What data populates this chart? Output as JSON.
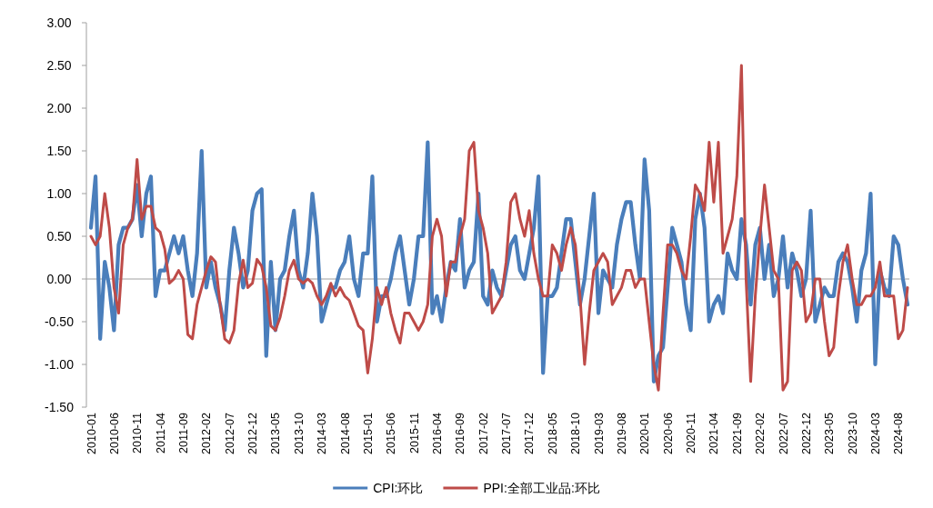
{
  "chart_data": {
    "type": "line",
    "categories": [
      "2010-01",
      null,
      null,
      null,
      null,
      "2010-06",
      null,
      null,
      null,
      null,
      "2010-11",
      null,
      null,
      null,
      null,
      "2011-04",
      null,
      null,
      null,
      null,
      "2011-09",
      null,
      null,
      null,
      null,
      "2012-02",
      null,
      null,
      null,
      null,
      "2012-07",
      null,
      null,
      null,
      null,
      "2012-12",
      null,
      null,
      null,
      null,
      "2013-05",
      null,
      null,
      null,
      null,
      "2013-10",
      null,
      null,
      null,
      null,
      "2014-03",
      null,
      null,
      null,
      null,
      "2014-08",
      null,
      null,
      null,
      null,
      "2015-01",
      null,
      null,
      null,
      null,
      "2015-06",
      null,
      null,
      null,
      null,
      "2015-11",
      null,
      null,
      null,
      null,
      "2016-04",
      null,
      null,
      null,
      null,
      "2016-09",
      null,
      null,
      null,
      null,
      "2017-02",
      null,
      null,
      null,
      null,
      "2017-07",
      null,
      null,
      null,
      null,
      "2017-12",
      null,
      null,
      null,
      null,
      "2018-05",
      null,
      null,
      null,
      null,
      "2018-10",
      null,
      null,
      null,
      null,
      "2019-03",
      null,
      null,
      null,
      null,
      "2019-08",
      null,
      null,
      null,
      null,
      "2020-01",
      null,
      null,
      null,
      null,
      "2020-06",
      null,
      null,
      null,
      null,
      "2020-11",
      null,
      null,
      null,
      null,
      "2021-04",
      null,
      null,
      null,
      null,
      "2021-09",
      null,
      null,
      null,
      null,
      "2022-02",
      null,
      null,
      null,
      null,
      "2022-07",
      null,
      null,
      null,
      null,
      "2022-12",
      null,
      null,
      null,
      null,
      "2023-05",
      null,
      null,
      null,
      null,
      "2023-10",
      null,
      null,
      null,
      null,
      "2024-03",
      null,
      null,
      null,
      null,
      "2024-08",
      null,
      null
    ],
    "series": [
      {
        "name": "CPI:环比",
        "color": "#4a7ebb",
        "values": [
          0.6,
          1.2,
          -0.7,
          0.2,
          -0.1,
          -0.6,
          0.4,
          0.6,
          0.6,
          0.7,
          1.1,
          0.5,
          1.0,
          1.2,
          -0.2,
          0.1,
          0.1,
          0.3,
          0.5,
          0.3,
          0.5,
          0.1,
          -0.2,
          0.3,
          1.5,
          -0.1,
          0.2,
          -0.1,
          -0.3,
          -0.6,
          0.1,
          0.6,
          0.3,
          -0.1,
          0.1,
          0.8,
          1.0,
          1.05,
          -0.9,
          0.2,
          -0.6,
          0.0,
          0.1,
          0.5,
          0.8,
          0.1,
          -0.1,
          0.3,
          1.0,
          0.5,
          -0.5,
          -0.3,
          -0.1,
          -0.1,
          0.1,
          0.2,
          0.5,
          0.0,
          -0.2,
          0.3,
          0.3,
          1.2,
          -0.5,
          -0.2,
          -0.2,
          0.0,
          0.3,
          0.5,
          0.1,
          -0.3,
          0.0,
          0.5,
          0.5,
          1.6,
          -0.4,
          -0.2,
          -0.5,
          -0.1,
          0.2,
          0.1,
          0.7,
          -0.1,
          0.1,
          0.2,
          1.0,
          -0.2,
          -0.3,
          0.1,
          -0.1,
          -0.2,
          0.1,
          0.4,
          0.5,
          0.1,
          0.0,
          0.3,
          0.6,
          1.2,
          -1.1,
          -0.2,
          -0.2,
          -0.1,
          0.3,
          0.7,
          0.7,
          0.2,
          -0.3,
          0.0,
          0.5,
          1.0,
          -0.4,
          0.1,
          0.0,
          -0.1,
          0.4,
          0.7,
          0.9,
          0.9,
          0.4,
          0.0,
          1.4,
          0.8,
          -1.2,
          -0.9,
          -0.8,
          -0.1,
          0.6,
          0.4,
          0.2,
          -0.3,
          -0.6,
          0.7,
          1.0,
          0.6,
          -0.5,
          -0.3,
          -0.2,
          -0.4,
          0.3,
          0.1,
          0.0,
          0.7,
          0.4,
          -0.3,
          0.4,
          0.6,
          0.0,
          0.4,
          -0.2,
          0.0,
          0.5,
          -0.1,
          0.3,
          0.1,
          -0.2,
          0.0,
          0.8,
          -0.5,
          -0.3,
          -0.1,
          -0.2,
          -0.2,
          0.2,
          0.3,
          0.2,
          -0.1,
          -0.5,
          0.1,
          0.3,
          1.0,
          -1.0,
          0.1,
          -0.1,
          -0.2,
          0.5,
          0.4,
          0.0,
          -0.3
        ]
      },
      {
        "name": "PPI:全部工业品:环比",
        "color": "#be4b48",
        "values": [
          0.5,
          0.4,
          0.5,
          1.0,
          0.6,
          -0.1,
          -0.4,
          0.4,
          0.6,
          0.7,
          1.4,
          0.7,
          0.85,
          0.85,
          0.6,
          0.55,
          0.35,
          -0.05,
          0.0,
          0.1,
          0.0,
          -0.65,
          -0.7,
          -0.3,
          -0.1,
          0.1,
          0.26,
          0.2,
          -0.3,
          -0.7,
          -0.75,
          -0.6,
          -0.05,
          0.22,
          -0.1,
          -0.05,
          0.23,
          0.15,
          -0.1,
          -0.55,
          -0.6,
          -0.45,
          -0.2,
          0.1,
          0.22,
          0.0,
          -0.05,
          0.0,
          -0.05,
          -0.2,
          -0.3,
          -0.2,
          -0.05,
          -0.2,
          -0.1,
          -0.2,
          -0.25,
          -0.4,
          -0.55,
          -0.6,
          -1.1,
          -0.7,
          -0.1,
          -0.3,
          -0.1,
          -0.4,
          -0.6,
          -0.75,
          -0.4,
          -0.4,
          -0.5,
          -0.6,
          -0.5,
          -0.3,
          0.5,
          0.7,
          0.5,
          -0.2,
          0.2,
          0.2,
          0.5,
          0.7,
          1.5,
          1.6,
          0.8,
          0.6,
          0.3,
          -0.4,
          -0.3,
          -0.2,
          0.2,
          0.9,
          1.0,
          0.7,
          0.5,
          0.8,
          0.3,
          0.0,
          -0.2,
          -0.2,
          0.4,
          0.3,
          0.1,
          0.4,
          0.6,
          0.4,
          -0.2,
          -1.0,
          -0.4,
          0.1,
          0.2,
          0.3,
          0.2,
          -0.3,
          -0.2,
          -0.1,
          0.1,
          0.1,
          -0.1,
          0.0,
          0.0,
          -0.5,
          -1.0,
          -1.3,
          -0.4,
          0.4,
          0.4,
          0.3,
          0.1,
          0.0,
          0.5,
          1.1,
          1.0,
          0.8,
          1.6,
          0.9,
          1.6,
          0.3,
          0.5,
          0.7,
          1.2,
          2.5,
          0.0,
          -1.2,
          -0.2,
          0.5,
          1.1,
          0.6,
          0.1,
          0.0,
          -1.3,
          -1.2,
          0.1,
          0.2,
          0.1,
          -0.5,
          -0.4,
          0.0,
          0.0,
          -0.5,
          -0.9,
          -0.8,
          -0.2,
          0.2,
          0.4,
          0.0,
          -0.3,
          -0.3,
          -0.2,
          -0.2,
          -0.1,
          0.2,
          -0.2,
          -0.2,
          -0.2,
          -0.7,
          -0.6,
          -0.1
        ]
      }
    ],
    "ylim": [
      -1.5,
      3.0
    ],
    "yticks": [
      {
        "value": -1.5,
        "label": "-1.50"
      },
      {
        "value": -1.0,
        "label": "-1.00"
      },
      {
        "value": -0.5,
        "label": "-0.50"
      },
      {
        "value": 0.0,
        "label": "0.00"
      },
      {
        "value": 0.5,
        "label": "0.50"
      },
      {
        "value": 1.0,
        "label": "1.00"
      },
      {
        "value": 1.5,
        "label": "1.50"
      },
      {
        "value": 2.0,
        "label": "2.00"
      },
      {
        "value": 2.5,
        "label": "2.50"
      },
      {
        "value": 3.0,
        "label": "3.00"
      }
    ],
    "legend": "bottom"
  }
}
